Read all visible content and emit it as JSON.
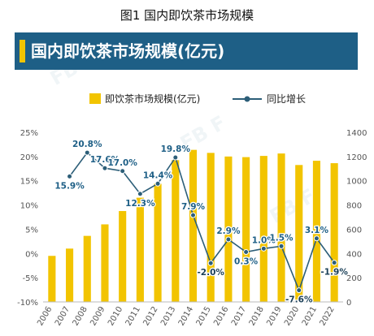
{
  "figure_caption": "图1 国内即饮茶市场规模",
  "banner_title": "国内即饮茶市场规模(亿元)",
  "colors": {
    "banner": "#1e5f86",
    "bar": "#f2c400",
    "line": "#2c5e78",
    "text_axis": "#555555",
    "label_dark": "#1e5f86"
  },
  "chart_data": {
    "type": "bar",
    "title": "国内即饮茶市场规模(亿元)",
    "categories": [
      "2006",
      "2007",
      "2008",
      "2009",
      "2010",
      "2011",
      "2012",
      "2013",
      "2014",
      "2015",
      "2016",
      "2017",
      "2018",
      "2019",
      "2020",
      "2021",
      "2022"
    ],
    "series": [
      {
        "name": "即饮茶市场规模(亿元)",
        "type": "bar",
        "axis": "right",
        "values": [
          380,
          440,
          545,
          640,
          750,
          860,
          975,
          1170,
          1255,
          1230,
          1200,
          1195,
          1205,
          1225,
          1130,
          1165,
          1145
        ]
      },
      {
        "name": "同比增长",
        "type": "line",
        "axis": "left",
        "values": [
          null,
          15.9,
          20.8,
          17.6,
          17.0,
          12.3,
          14.4,
          19.8,
          7.9,
          -2.0,
          2.9,
          0.3,
          1.0,
          1.5,
          -7.6,
          3.1,
          -1.9
        ],
        "labels": [
          "",
          "15.9%",
          "20.8%",
          "17.6%",
          "17.0%",
          "12.3%",
          "14.4%",
          "19.8%",
          "7.9%",
          "-2.0%",
          "2.9%",
          "0.3%",
          "1.0%",
          "1.5%",
          "-7.6%",
          "3.1%",
          "-1.9%"
        ]
      }
    ],
    "y_left": {
      "min": -10,
      "max": 25,
      "ticks": [
        "25%",
        "20%",
        "15%",
        "10%",
        "5%",
        "0%",
        "-5%",
        "-10%"
      ]
    },
    "y_right": {
      "min": 0,
      "max": 1400,
      "ticks": [
        "1400",
        "1200",
        "1000",
        "800",
        "600",
        "400",
        "200",
        "0"
      ]
    },
    "grid": false,
    "legend_position": "top"
  },
  "watermark": "FB F"
}
